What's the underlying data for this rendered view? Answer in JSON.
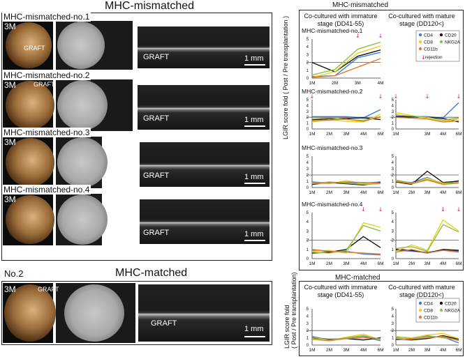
{
  "left": {
    "title": "MHC-mismatched",
    "month_label": "3M",
    "graft": "GRAFT",
    "scale": "1 mm",
    "rows": [
      "MHC-mismatched-no.1",
      "MHC-mismatched-no.2",
      "MHC-mismatched-no.3",
      "MHC-mismatched-no.4"
    ],
    "matched_no": "No.2",
    "matched_title": "MHC-matched"
  },
  "right": {
    "top_title": "MHC-mismatched",
    "col_immature": [
      "Co-cultured with immature",
      "stage (DD41-55)"
    ],
    "col_mature": [
      "Co-cultured with mature",
      "stage (DD120<)"
    ],
    "ylabel": [
      "LGIR  score fold  ( Post / Pre transplantation )"
    ],
    "ylabel_bottom": [
      "LGIR  score fold",
      "( Post / Pre transplantation)"
    ],
    "bottom_title": "MHC-matched",
    "legend": [
      {
        "name": "CD4",
        "color": "#3b7dd8"
      },
      {
        "name": "CD20",
        "color": "#111111"
      },
      {
        "name": "CD8",
        "color": "#e8d21e"
      },
      {
        "name": "NKG2A",
        "color": "#8fbf4a"
      },
      {
        "name": "CD11b",
        "color": "#e8772e"
      },
      {
        "name": "rejection",
        "color": "#c2187a"
      }
    ],
    "row_labels": [
      "MHC-mismatched-no.1",
      "MHC-mismatched-no.2",
      "MHC-mismatched-no.3",
      "MHC-mismatched-no.4"
    ]
  },
  "chart_data": [
    {
      "type": "line",
      "panel": "no.1 immature",
      "x": [
        "1M",
        "2M",
        "3M",
        "4M"
      ],
      "ylim": [
        0,
        5
      ],
      "yticks": [
        0,
        1,
        2,
        3,
        4,
        5
      ],
      "series": [
        {
          "name": "CD4",
          "values": [
            0.2,
            0.3,
            2.6,
            3.3
          ]
        },
        {
          "name": "CD20",
          "values": [
            2.0,
            0.8,
            2.8,
            3.6
          ]
        },
        {
          "name": "CD8",
          "values": [
            0.1,
            0.8,
            3.2,
            4.1
          ]
        },
        {
          "name": "NKG2A",
          "values": [
            0.4,
            1.1,
            3.7,
            4.6
          ]
        },
        {
          "name": "CD11b",
          "values": [
            0.1,
            0.3,
            1.4,
            2.5
          ]
        }
      ],
      "rejection_at": [
        "3M",
        "4M"
      ]
    },
    {
      "type": "line",
      "panel": "no.2 immature",
      "x": [
        "1M",
        "2M",
        "3M",
        "4M",
        "6M"
      ],
      "ylim": [
        0,
        5
      ],
      "series": [
        {
          "name": "CD4",
          "values": [
            2.1,
            2.1,
            2.1,
            1.9,
            3.3
          ]
        },
        {
          "name": "CD20",
          "values": [
            1.6,
            1.7,
            1.8,
            1.9,
            1.6
          ]
        },
        {
          "name": "CD8",
          "values": [
            1.2,
            1.6,
            1.3,
            1.2,
            2.5
          ]
        },
        {
          "name": "NKG2A",
          "values": [
            1.7,
            1.9,
            1.6,
            1.5,
            2.0
          ]
        },
        {
          "name": "CD11b",
          "values": [
            1.4,
            1.5,
            1.7,
            1.3,
            2.1
          ]
        }
      ],
      "rejection_at": [
        "1M",
        "6M"
      ]
    },
    {
      "type": "line",
      "panel": "no.2 mature",
      "x": [
        "1M",
        "3M",
        "4M",
        "6M"
      ],
      "ylim": [
        0,
        5
      ],
      "series": [
        {
          "name": "CD4",
          "values": [
            2.2,
            2.1,
            1.9,
            4.5
          ]
        },
        {
          "name": "CD20",
          "values": [
            2.1,
            2.0,
            1.8,
            1.2
          ]
        },
        {
          "name": "CD8",
          "values": [
            2.8,
            1.8,
            1.3,
            1.7
          ]
        },
        {
          "name": "NKG2A",
          "values": [
            2.4,
            2.0,
            1.5,
            1.9
          ]
        },
        {
          "name": "CD11b",
          "values": [
            2.0,
            1.7,
            1.2,
            1.4
          ]
        }
      ],
      "rejection_at": [
        "1M",
        "3M",
        "6M"
      ]
    },
    {
      "type": "line",
      "panel": "no.3 immature",
      "x": [
        "1M",
        "2M",
        "3M",
        "4M",
        "6M"
      ],
      "ylim": [
        0,
        5
      ],
      "series": [
        {
          "name": "CD4",
          "values": [
            0.9,
            0.7,
            0.8,
            0.7,
            0.9
          ]
        },
        {
          "name": "CD20",
          "values": [
            0.5,
            0.8,
            0.6,
            0.4,
            0.8
          ]
        },
        {
          "name": "CD8",
          "values": [
            0.7,
            0.6,
            1.1,
            0.6,
            0.7
          ]
        },
        {
          "name": "NKG2A",
          "values": [
            0.6,
            0.9,
            0.7,
            0.5,
            0.6
          ]
        },
        {
          "name": "CD11b",
          "values": [
            0.8,
            0.7,
            0.9,
            0.8,
            0.7
          ]
        }
      ]
    },
    {
      "type": "line",
      "panel": "no.3 mature",
      "x": [
        "1M",
        "2M",
        "3M",
        "4M",
        "6M"
      ],
      "ylim": [
        0,
        5
      ],
      "series": [
        {
          "name": "CD4",
          "values": [
            1.0,
            0.8,
            1.6,
            0.6,
            1.1
          ]
        },
        {
          "name": "CD20",
          "values": [
            0.9,
            0.5,
            2.6,
            0.8,
            1.0
          ]
        },
        {
          "name": "CD8",
          "values": [
            1.1,
            0.6,
            1.5,
            0.7,
            0.8
          ]
        },
        {
          "name": "NKG2A",
          "values": [
            1.2,
            0.7,
            1.3,
            0.6,
            0.9
          ]
        },
        {
          "name": "CD11b",
          "values": [
            1.0,
            0.6,
            1.2,
            0.5,
            0.7
          ]
        }
      ]
    },
    {
      "type": "line",
      "panel": "no.4 immature",
      "x": [
        "1M",
        "2M",
        "3M",
        "4M",
        "6M"
      ],
      "ylim": [
        0,
        5
      ],
      "series": [
        {
          "name": "CD4",
          "values": [
            0.9,
            0.8,
            0.8,
            0.5,
            0.4
          ]
        },
        {
          "name": "CD20",
          "values": [
            0.6,
            0.7,
            1.0,
            2.4,
            1.2
          ]
        },
        {
          "name": "CD8",
          "values": [
            0.8,
            0.9,
            0.6,
            3.9,
            3.4
          ]
        },
        {
          "name": "NKG2A",
          "values": [
            0.7,
            0.6,
            0.9,
            3.6,
            3.0
          ]
        },
        {
          "name": "CD11b",
          "values": [
            1.0,
            0.8,
            0.7,
            0.6,
            0.5
          ]
        }
      ],
      "rejection_at": [
        "4M",
        "6M"
      ]
    },
    {
      "type": "line",
      "panel": "no.4 mature",
      "x": [
        "1M",
        "2M",
        "3M",
        "4M",
        "6M"
      ],
      "ylim": [
        0,
        5
      ],
      "series": [
        {
          "name": "CD4",
          "values": [
            0.9,
            0.8,
            0.7,
            0.9,
            0.8
          ]
        },
        {
          "name": "CD20",
          "values": [
            1.0,
            0.9,
            0.6,
            1.0,
            0.9
          ]
        },
        {
          "name": "CD8",
          "values": [
            0.8,
            1.5,
            0.9,
            4.2,
            3.0
          ]
        },
        {
          "name": "NKG2A",
          "values": [
            1.1,
            1.3,
            0.8,
            3.7,
            2.9
          ]
        },
        {
          "name": "CD11b",
          "values": [
            0.7,
            1.0,
            0.6,
            0.9,
            0.7
          ]
        }
      ],
      "rejection_at": [
        "4M",
        "6M"
      ]
    },
    {
      "type": "line",
      "panel": "matched immature",
      "x": [
        "1M",
        "2M",
        "3M",
        "4M",
        "6M"
      ],
      "ylim": [
        0,
        5
      ],
      "series": [
        {
          "name": "CD4",
          "values": [
            1.2,
            0.7,
            1.0,
            1.2,
            0.6
          ]
        },
        {
          "name": "CD20",
          "values": [
            1.0,
            0.8,
            0.9,
            0.7,
            1.0
          ]
        },
        {
          "name": "CD8",
          "values": [
            0.9,
            0.6,
            1.1,
            1.5,
            0.7
          ]
        },
        {
          "name": "NKG2A",
          "values": [
            1.1,
            0.7,
            1.0,
            1.3,
            0.8
          ]
        },
        {
          "name": "CD11b",
          "values": [
            0.8,
            0.6,
            0.9,
            1.0,
            0.9
          ]
        }
      ]
    },
    {
      "type": "line",
      "panel": "matched mature",
      "x": [
        "1M",
        "2M",
        "3M",
        "4M",
        "6M"
      ],
      "ylim": [
        0,
        5
      ],
      "series": [
        {
          "name": "CD4",
          "values": [
            1.0,
            0.9,
            1.2,
            1.1,
            0.3
          ]
        },
        {
          "name": "CD20",
          "values": [
            0.8,
            0.7,
            0.9,
            1.3,
            0.8
          ]
        },
        {
          "name": "CD8",
          "values": [
            1.2,
            1.0,
            1.4,
            1.6,
            0.9
          ]
        },
        {
          "name": "NKG2A",
          "values": [
            1.1,
            0.8,
            1.3,
            1.0,
            0.7
          ]
        },
        {
          "name": "CD11b",
          "values": [
            0.7,
            0.8,
            1.0,
            1.2,
            0.6
          ]
        }
      ]
    }
  ]
}
